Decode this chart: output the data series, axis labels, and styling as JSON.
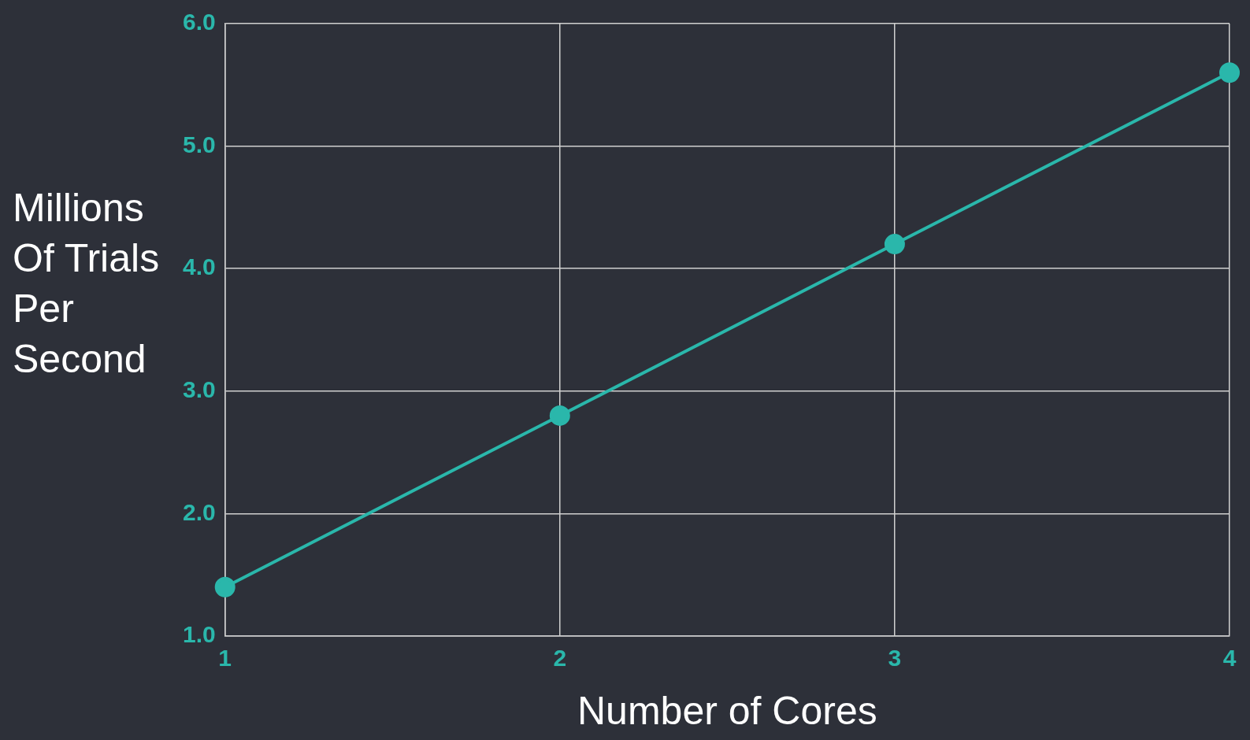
{
  "chart_data": {
    "type": "line",
    "xlabel": "Number of Cores",
    "ylabel": "Millions Of Trials Per Second",
    "x": [
      1,
      2,
      3,
      4
    ],
    "series": [
      {
        "color": "#2ab7ab",
        "values": [
          1.4,
          2.8,
          4.2,
          5.6
        ]
      }
    ],
    "xlim": [
      1,
      4
    ],
    "xticks": [
      1,
      2,
      3,
      4
    ],
    "ylim": [
      1,
      6
    ],
    "yticks": [
      {
        "value": 1,
        "label": "1.0"
      },
      {
        "value": 2,
        "label": "2.0"
      },
      {
        "value": 3,
        "label": "3.0"
      },
      {
        "value": 4,
        "label": "4.0"
      },
      {
        "value": 5,
        "label": "5.0"
      },
      {
        "value": 6,
        "label": "6.0"
      }
    ],
    "grid": true,
    "marker": "circle",
    "legend": false
  }
}
